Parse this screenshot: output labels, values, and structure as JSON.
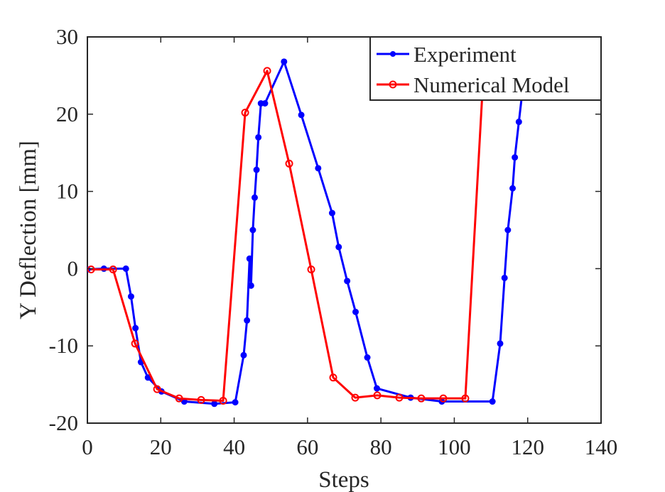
{
  "chart_data": {
    "type": "line",
    "xlabel": "Steps",
    "ylabel": "Y Deflection [mm]",
    "xlim": [
      0,
      140
    ],
    "ylim": [
      -20,
      30
    ],
    "x_ticks": [
      0,
      20,
      40,
      60,
      80,
      100,
      120,
      140
    ],
    "y_ticks": [
      -20,
      -10,
      0,
      10,
      20,
      30
    ],
    "x_tick_labels": [
      "0",
      "20",
      "40",
      "60",
      "80",
      "100",
      "120",
      "140"
    ],
    "y_tick_labels": [
      "-20",
      "-10",
      "0",
      "10",
      "20",
      "30"
    ],
    "grid": false,
    "legend_position": "top-right",
    "series": [
      {
        "name": "Experiment",
        "color": "#0000ff",
        "marker": "filled-circle",
        "x": [
          0,
          4.5,
          10.5,
          11.9,
          13.1,
          14.6,
          16.5,
          20.2,
          26.4,
          34.6,
          40.3,
          42.6,
          43.5,
          44.2,
          44.6,
          45.1,
          45.6,
          46.1,
          46.6,
          47.3,
          48.4,
          53.6,
          58.3,
          62.9,
          66.7,
          68.5,
          70.8,
          73.1,
          76.3,
          78.9,
          88.1,
          96.6,
          110.4,
          112.5,
          113.7,
          114.6,
          115.9,
          116.5,
          117.6,
          118.4,
          120.9
        ],
        "y": [
          -0.1,
          0.0,
          0.0,
          -3.6,
          -7.7,
          -12.1,
          -14.1,
          -15.9,
          -17.2,
          -17.5,
          -17.3,
          -11.2,
          -6.7,
          1.3,
          -2.2,
          5.0,
          9.2,
          12.8,
          17.0,
          21.4,
          21.4,
          26.8,
          19.9,
          13.0,
          7.2,
          2.8,
          -1.6,
          -5.6,
          -11.5,
          -15.5,
          -16.7,
          -17.2,
          -17.2,
          -9.7,
          -1.2,
          5.0,
          10.4,
          14.4,
          19.0,
          22.3,
          30.0
        ]
      },
      {
        "name": "Numerical Model",
        "color": "#ff0000",
        "marker": "open-circle",
        "x": [
          1,
          7,
          13,
          19,
          25,
          31,
          37,
          43,
          49,
          55,
          61,
          67,
          73,
          79,
          85,
          91,
          97,
          103,
          108.5
        ],
        "y": [
          -0.1,
          -0.1,
          -9.7,
          -15.6,
          -16.8,
          -17.0,
          -17.1,
          20.2,
          25.6,
          13.6,
          -0.1,
          -14.1,
          -16.7,
          -16.4,
          -16.7,
          -16.8,
          -16.8,
          -16.8,
          30.0
        ]
      }
    ]
  }
}
